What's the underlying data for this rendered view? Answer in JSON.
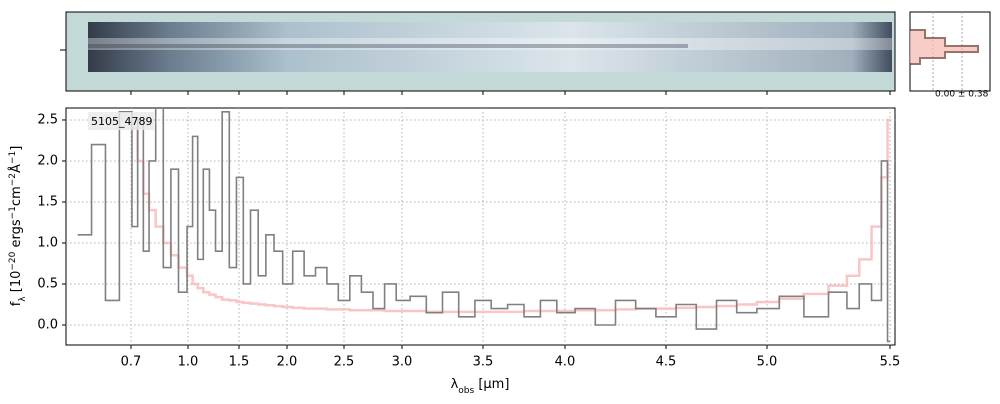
{
  "chart_data": {
    "type": "step",
    "label": "5105_4789",
    "profile_label": "0.00 ± 0.38",
    "xlabel": [
      "λ",
      "obs",
      " [μm]"
    ],
    "ylabel": [
      "f",
      "λ",
      " [10",
      "−20",
      " ergs",
      "−1",
      "cm",
      "−2",
      "Å",
      "−1",
      "]"
    ],
    "x": [
      0.6,
      0.63,
      0.66,
      0.69,
      0.72,
      0.75,
      0.78,
      0.81,
      0.85,
      0.89,
      0.93,
      0.97,
      1.02,
      1.07,
      1.12,
      1.18,
      1.24,
      1.3,
      1.37,
      1.44,
      1.51,
      1.58,
      1.66,
      1.74,
      1.82,
      1.91,
      2.0,
      2.1,
      2.2,
      2.3,
      2.4,
      2.5,
      2.6,
      2.7,
      2.8,
      2.9,
      3.0,
      3.1,
      3.2,
      3.3,
      3.4,
      3.5,
      3.6,
      3.7,
      3.8,
      3.9,
      4.0,
      4.1,
      4.2,
      4.3,
      4.4,
      4.5,
      4.6,
      4.7,
      4.8,
      4.9,
      5.0,
      5.1,
      5.2,
      5.3,
      5.35,
      5.4,
      5.45,
      5.48,
      5.5
    ],
    "series": [
      {
        "color": "#f7b6b6",
        "values": [
          null,
          null,
          null,
          null,
          2.4,
          2.0,
          1.6,
          1.4,
          1.2,
          1.0,
          0.85,
          0.7,
          0.6,
          0.5,
          0.45,
          0.4,
          0.37,
          0.34,
          0.31,
          0.3,
          0.28,
          0.27,
          0.26,
          0.25,
          0.24,
          0.23,
          0.22,
          0.21,
          0.2,
          0.2,
          0.19,
          0.19,
          0.18,
          0.18,
          0.18,
          0.17,
          0.17,
          0.17,
          0.16,
          0.16,
          0.16,
          0.16,
          0.16,
          0.16,
          0.17,
          0.17,
          0.17,
          0.18,
          0.18,
          0.19,
          0.2,
          0.2,
          0.21,
          0.22,
          0.23,
          0.25,
          0.28,
          0.32,
          0.38,
          0.48,
          0.6,
          0.8,
          1.2,
          1.8,
          2.5
        ]
      },
      {
        "color": "#808080",
        "values": [
          1.1,
          2.2,
          0.3,
          2.6,
          1.2,
          2.5,
          0.9,
          2.0,
          2.7,
          0.7,
          1.9,
          0.4,
          1.2,
          2.3,
          0.8,
          1.9,
          1.4,
          0.9,
          2.6,
          0.7,
          1.8,
          0.5,
          1.4,
          0.6,
          1.1,
          0.9,
          0.5,
          0.9,
          0.6,
          0.7,
          0.5,
          0.3,
          0.6,
          0.4,
          0.2,
          0.5,
          0.3,
          0.35,
          0.15,
          0.4,
          0.1,
          0.3,
          0.2,
          0.25,
          0.1,
          0.3,
          0.15,
          0.2,
          0.0,
          0.3,
          0.2,
          0.1,
          0.25,
          -0.05,
          0.3,
          0.15,
          0.2,
          0.35,
          0.1,
          0.4,
          0.2,
          0.5,
          0.3,
          2.0,
          -0.2
        ]
      }
    ],
    "xlim": [
      0.56,
      5.52
    ],
    "xticks": [
      0.7,
      {
        "value": 1.0,
        "label": "1.0"
      },
      1.5,
      {
        "value": 2.0,
        "label": "2.0"
      },
      2.5,
      {
        "value": 3.0,
        "label": "3.0"
      },
      3.5,
      {
        "value": 4.0,
        "label": "4.0"
      },
      4.5,
      {
        "value": 5.0,
        "label": "5.0"
      },
      5.5
    ],
    "ylim": [
      -0.244,
      2.646
    ],
    "yticks": [
      {
        "value": 0.0,
        "label": "0.0"
      },
      0.5,
      {
        "value": 1.0,
        "label": "1.0"
      },
      1.5,
      {
        "value": 2.0,
        "label": "2.0"
      },
      2.5
    ],
    "grid": true
  }
}
